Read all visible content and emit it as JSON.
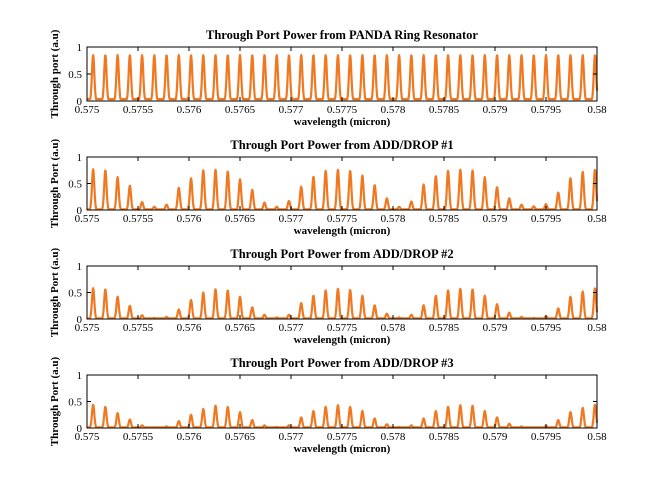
{
  "colors": {
    "signal": "#f07820",
    "axes": "#000000",
    "background": "#ffffff"
  },
  "chart_data": [
    {
      "type": "line",
      "title": "Through Port Power from PANDA Ring Resonator",
      "xlabel": "wavelength (micron)",
      "ylabel": "Through port (a.u)",
      "xlim": [
        0.575,
        0.58
      ],
      "ylim": [
        0,
        1
      ],
      "xticks": [
        "0.575",
        "0.5755",
        "0.576",
        "0.5765",
        "0.577",
        "0.5775",
        "0.578",
        "0.5785",
        "0.579",
        "0.5795",
        "0.58"
      ],
      "yticks": [
        "0",
        "0.5",
        "1"
      ],
      "grid": false,
      "series": [
        {
          "peaks_x": [
            0.57506,
            0.57518,
            0.5753,
            0.57542,
            0.57554,
            0.57566,
            0.57578,
            0.5759,
            0.57602,
            0.57614,
            0.57626,
            0.57638,
            0.5765,
            0.57662,
            0.57674,
            0.57686,
            0.57698,
            0.5771,
            0.57722,
            0.57734,
            0.57746,
            0.57758,
            0.5777,
            0.57782,
            0.57794,
            0.57806,
            0.57818,
            0.5783,
            0.57842,
            0.57854,
            0.57866,
            0.57878,
            0.5789,
            0.57902,
            0.57914,
            0.57926,
            0.57938,
            0.5795,
            0.57962,
            0.57974,
            0.57986,
            0.57998
          ],
          "peaks_y": 0.85
        }
      ]
    },
    {
      "type": "line",
      "title": "Through Port Power from ADD/DROP  #1",
      "xlabel": "wavelength (micron)",
      "ylabel": "Through Port (a.u)",
      "xlim": [
        0.575,
        0.58
      ],
      "ylim": [
        0,
        1
      ],
      "xticks": [
        "0.575",
        "0.5755",
        "0.576",
        "0.5765",
        "0.577",
        "0.5775",
        "0.578",
        "0.5785",
        "0.579",
        "0.5795",
        "0.58"
      ],
      "yticks": [
        "0",
        "0.5",
        "1"
      ],
      "grid": false,
      "series": [
        {
          "peaks_x": [
            0.57506,
            0.57518,
            0.5753,
            0.57542,
            0.57554,
            0.57566,
            0.57578,
            0.5759,
            0.57602,
            0.57614,
            0.57626,
            0.57638,
            0.5765,
            0.57662,
            0.57674,
            0.57686,
            0.57698,
            0.5771,
            0.57722,
            0.57734,
            0.57746,
            0.57758,
            0.5777,
            0.57782,
            0.57794,
            0.57806,
            0.57818,
            0.5783,
            0.57842,
            0.57854,
            0.57866,
            0.57878,
            0.5789,
            0.57902,
            0.57914,
            0.57926,
            0.57938,
            0.5795,
            0.57962,
            0.57974,
            0.57986,
            0.57998
          ],
          "peaks_y": [
            0.77,
            0.75,
            0.62,
            0.46,
            0.15,
            0.06,
            0.1,
            0.42,
            0.6,
            0.75,
            0.76,
            0.73,
            0.58,
            0.38,
            0.14,
            0.06,
            0.17,
            0.44,
            0.63,
            0.74,
            0.76,
            0.74,
            0.65,
            0.47,
            0.22,
            0.06,
            0.16,
            0.48,
            0.64,
            0.74,
            0.76,
            0.75,
            0.62,
            0.43,
            0.22,
            0.1,
            0.07,
            0.11,
            0.33,
            0.6,
            0.72,
            0.76
          ]
        }
      ]
    },
    {
      "type": "line",
      "title": "Through Port Power from ADD/DROP  #2",
      "xlabel": "wavelength (micron)",
      "ylabel": "Through Port (a.u)",
      "xlim": [
        0.575,
        0.58
      ],
      "ylim": [
        0,
        1
      ],
      "xticks": [
        "0.575",
        "0.5755",
        "0.576",
        "0.5765",
        "0.577",
        "0.5775",
        "0.578",
        "0.5785",
        "0.579",
        "0.5795",
        "0.58"
      ],
      "yticks": [
        "0",
        "0.5",
        "1"
      ],
      "grid": false,
      "series": [
        {
          "peaks_x": [
            0.57506,
            0.57518,
            0.5753,
            0.57542,
            0.57554,
            0.57566,
            0.57578,
            0.5759,
            0.57602,
            0.57614,
            0.57626,
            0.57638,
            0.5765,
            0.57662,
            0.57674,
            0.57686,
            0.57698,
            0.5771,
            0.57722,
            0.57734,
            0.57746,
            0.57758,
            0.5777,
            0.57782,
            0.57794,
            0.57806,
            0.57818,
            0.5783,
            0.57842,
            0.57854,
            0.57866,
            0.57878,
            0.5789,
            0.57902,
            0.57914,
            0.57926,
            0.57938,
            0.5795,
            0.57962,
            0.57974,
            0.57986,
            0.57998
          ],
          "peaks_y": [
            0.58,
            0.56,
            0.42,
            0.25,
            0.07,
            0.02,
            0.04,
            0.18,
            0.36,
            0.5,
            0.56,
            0.54,
            0.42,
            0.22,
            0.08,
            0.03,
            0.08,
            0.3,
            0.44,
            0.54,
            0.57,
            0.55,
            0.44,
            0.26,
            0.1,
            0.03,
            0.08,
            0.26,
            0.44,
            0.54,
            0.57,
            0.56,
            0.44,
            0.28,
            0.12,
            0.04,
            0.02,
            0.05,
            0.2,
            0.42,
            0.52,
            0.58
          ]
        }
      ]
    },
    {
      "type": "line",
      "title": "Through Port Power from ADD/DROP  #3",
      "xlabel": "wavelength (micron)",
      "ylabel": "Through Port (a.u)",
      "xlim": [
        0.575,
        0.58
      ],
      "ylim": [
        0,
        1
      ],
      "xticks": [
        "0.575",
        "0.5755",
        "0.576",
        "0.5765",
        "0.577",
        "0.5775",
        "0.578",
        "0.5785",
        "0.579",
        "0.5795",
        "0.58"
      ],
      "yticks": [
        "0",
        "0.5",
        "1"
      ],
      "grid": false,
      "series": [
        {
          "peaks_x": [
            0.57506,
            0.57518,
            0.5753,
            0.57542,
            0.57554,
            0.57566,
            0.57578,
            0.5759,
            0.57602,
            0.57614,
            0.57626,
            0.57638,
            0.5765,
            0.57662,
            0.57674,
            0.57686,
            0.57698,
            0.5771,
            0.57722,
            0.57734,
            0.57746,
            0.57758,
            0.5777,
            0.57782,
            0.57794,
            0.57806,
            0.57818,
            0.5783,
            0.57842,
            0.57854,
            0.57866,
            0.57878,
            0.5789,
            0.57902,
            0.57914,
            0.57926,
            0.57938,
            0.5795,
            0.57962,
            0.57974,
            0.57986,
            0.57998
          ],
          "peaks_y": [
            0.44,
            0.4,
            0.28,
            0.16,
            0.05,
            0.01,
            0.03,
            0.13,
            0.25,
            0.36,
            0.42,
            0.4,
            0.3,
            0.15,
            0.05,
            0.02,
            0.05,
            0.2,
            0.32,
            0.4,
            0.43,
            0.4,
            0.32,
            0.18,
            0.07,
            0.02,
            0.05,
            0.18,
            0.32,
            0.4,
            0.43,
            0.42,
            0.32,
            0.2,
            0.08,
            0.03,
            0.01,
            0.04,
            0.15,
            0.3,
            0.38,
            0.44
          ]
        }
      ]
    }
  ]
}
